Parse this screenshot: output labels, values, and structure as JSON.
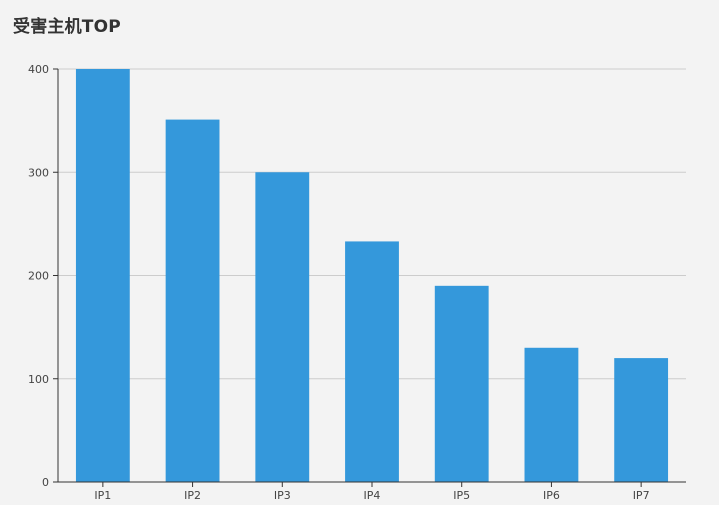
{
  "chart_data": {
    "type": "bar",
    "title": "受害主机TOP",
    "xlabel": "",
    "ylabel": "",
    "categories": [
      "IP1",
      "IP2",
      "IP3",
      "IP4",
      "IP5",
      "IP6",
      "IP7"
    ],
    "values": [
      400,
      351,
      300,
      233,
      190,
      130,
      120
    ],
    "ylim": [
      0,
      400
    ],
    "yticks": [
      "0",
      "100",
      "200",
      "300",
      "400"
    ],
    "grid": true,
    "legend": "none",
    "bar_color": "#3498db",
    "grid_color": "#cccccc",
    "axis_color": "#333333"
  }
}
